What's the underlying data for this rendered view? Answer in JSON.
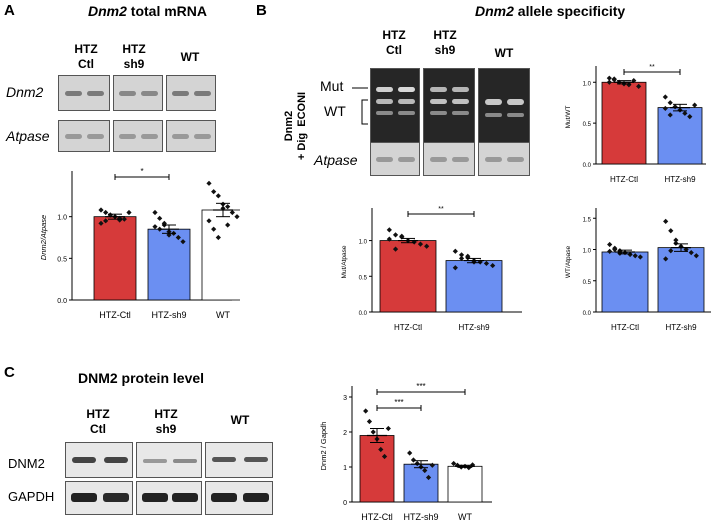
{
  "panelA": {
    "letter": "A",
    "title_gene": "Dnm2",
    "title_rest": " total mRNA",
    "lanes": [
      "HTZ\nCtl",
      "HTZ\nsh9",
      "WT"
    ],
    "gel_labels": [
      "Dnm2",
      "Atpase"
    ]
  },
  "panelB": {
    "letter": "B",
    "title_gene": "Dnm2",
    "title_rest": " allele specificity",
    "lanes": [
      "HTZ\nCtl",
      "HTZ\nsh9",
      "WT"
    ],
    "side_label": "Dnm2\n+ Dig  ECONI",
    "mut_label": "Mut",
    "wt_label": "WT",
    "atpase_label": "Atpase"
  },
  "panelC": {
    "letter": "C",
    "title": "DNM2 protein level",
    "lanes": [
      "HTZ\nCtl",
      "HTZ\nsh9",
      "WT"
    ],
    "blot_labels": [
      "DNM2",
      "GAPDH"
    ]
  },
  "chart_data": [
    {
      "id": "A-total",
      "type": "bar",
      "categories": [
        "HTZ-Ctl",
        "HTZ-sh9",
        "WT"
      ],
      "values": [
        1.0,
        0.85,
        1.08
      ],
      "errors": [
        0.03,
        0.05,
        0.08
      ],
      "colors": [
        "#d63a3a",
        "#6b8ff2",
        "#ffffff"
      ],
      "points": [
        [
          1.08,
          1.05,
          1.02,
          1.0,
          0.98,
          0.97,
          1.05,
          0.92,
          0.95,
          1.02,
          1.0,
          0.96
        ],
        [
          1.05,
          0.98,
          0.92,
          0.82,
          0.8,
          0.75,
          0.7,
          0.88,
          0.85,
          0.9,
          0.78
        ],
        [
          1.4,
          1.3,
          1.25,
          1.15,
          1.12,
          1.05,
          1.0,
          0.95,
          0.85,
          0.75,
          1.1,
          0.9
        ]
      ],
      "ylabel": "Dnm2/Atpase",
      "ylim": [
        0,
        1.5
      ],
      "yticks": [
        "0.0",
        "0.5",
        "1.0"
      ],
      "sig": [
        {
          "from": 0,
          "to": 1,
          "label": "*"
        }
      ]
    },
    {
      "id": "B-mutwt",
      "type": "bar",
      "categories": [
        "HTZ-Ctl",
        "HTZ-sh9"
      ],
      "values": [
        1.0,
        0.69
      ],
      "errors": [
        0.02,
        0.04
      ],
      "colors": [
        "#d63a3a",
        "#6b8ff2"
      ],
      "points": [
        [
          1.05,
          1.03,
          1.0,
          0.98,
          0.97,
          1.02,
          0.95,
          1.0,
          1.04
        ],
        [
          0.82,
          0.75,
          0.7,
          0.66,
          0.62,
          0.58,
          0.72,
          0.68,
          0.6
        ]
      ],
      "ylabel": "Mut/WT",
      "ylim": [
        0,
        1.15
      ],
      "yticks": [
        "0.0",
        "0.5",
        "1.0"
      ],
      "sig": [
        {
          "from": 0,
          "to": 1,
          "label": "**"
        }
      ]
    },
    {
      "id": "B-mut",
      "type": "bar",
      "categories": [
        "HTZ-Ctl",
        "HTZ-sh9"
      ],
      "values": [
        1.0,
        0.72
      ],
      "errors": [
        0.03,
        0.03
      ],
      "colors": [
        "#d63a3a",
        "#6b8ff2"
      ],
      "points": [
        [
          1.15,
          1.08,
          1.05,
          1.0,
          0.98,
          0.95,
          0.92,
          1.02,
          0.88,
          1.06
        ],
        [
          0.85,
          0.8,
          0.76,
          0.72,
          0.7,
          0.68,
          0.65,
          0.62,
          0.75,
          0.78,
          0.7
        ]
      ],
      "ylabel": "Mut/Atpase",
      "ylim": [
        0,
        1.4
      ],
      "yticks": [
        "0.0",
        "0.5",
        "1.0"
      ],
      "sig": [
        {
          "from": 0,
          "to": 1,
          "label": "**"
        }
      ]
    },
    {
      "id": "B-wt",
      "type": "bar",
      "categories": [
        "HTZ-Ctl",
        "HTZ-sh9"
      ],
      "values": [
        0.96,
        1.03
      ],
      "errors": [
        0.03,
        0.06
      ],
      "colors": [
        "#6b8ff2",
        "#6b8ff2"
      ],
      "points": [
        [
          1.08,
          1.02,
          0.98,
          0.95,
          0.92,
          0.9,
          0.88,
          0.97,
          1.0,
          0.94
        ],
        [
          1.45,
          1.3,
          1.15,
          1.05,
          1.0,
          0.95,
          0.9,
          0.85,
          0.98,
          1.1
        ]
      ],
      "ylabel": "WT/Atpase",
      "ylim": [
        0,
        1.6
      ],
      "yticks": [
        "0.0",
        "0.5",
        "1.0",
        "1.5"
      ],
      "sig": []
    },
    {
      "id": "C-protein",
      "type": "bar",
      "categories": [
        "HTZ-Ctl",
        "HTZ-sh9",
        "WT"
      ],
      "values": [
        1.9,
        1.08,
        1.02
      ],
      "errors": [
        0.2,
        0.1,
        0.03
      ],
      "colors": [
        "#d63a3a",
        "#6b8ff2",
        "#ffffff"
      ],
      "points": [
        [
          2.6,
          2.3,
          2.0,
          1.8,
          1.5,
          1.3,
          2.1
        ],
        [
          1.4,
          1.2,
          1.1,
          1.0,
          0.9,
          0.7,
          1.05
        ],
        [
          1.1,
          1.05,
          1.0,
          1.02,
          0.98,
          1.06
        ]
      ],
      "ylabel": "Dnm2 / Gapdh",
      "ylim": [
        0,
        3.2
      ],
      "yticks": [
        "0",
        "1",
        "2",
        "3"
      ],
      "sig": [
        {
          "from": 0,
          "to": 1,
          "label": "***"
        },
        {
          "from": 0,
          "to": 2,
          "label": "***"
        }
      ]
    }
  ]
}
